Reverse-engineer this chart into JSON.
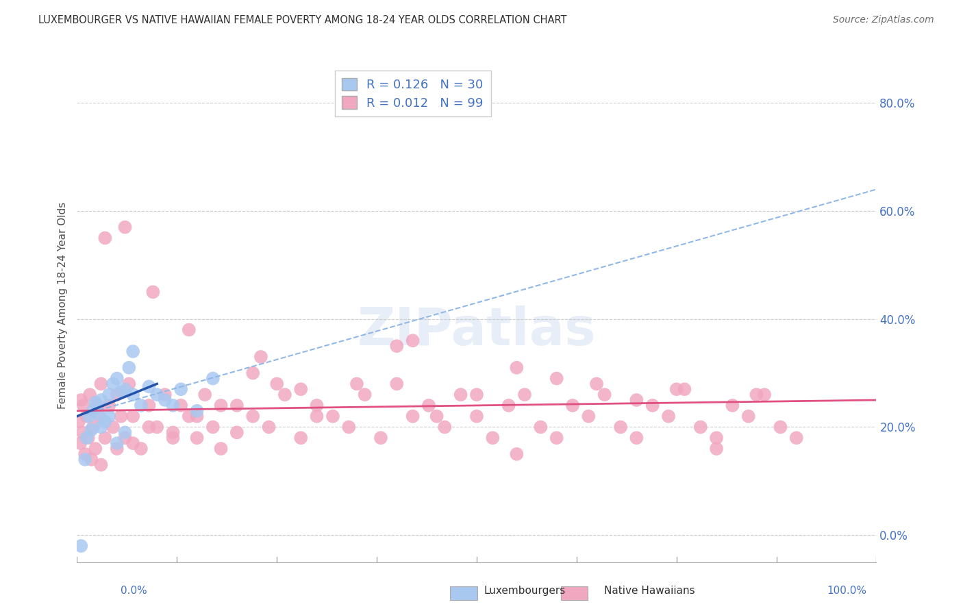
{
  "title": "LUXEMBOURGER VS NATIVE HAWAIIAN FEMALE POVERTY AMONG 18-24 YEAR OLDS CORRELATION CHART",
  "source": "Source: ZipAtlas.com",
  "ylabel": "Female Poverty Among 18-24 Year Olds",
  "xlim": [
    0,
    100
  ],
  "ylim": [
    -5,
    90
  ],
  "x_tick_labels_ends": [
    "0.0%",
    "100.0%"
  ],
  "y_ticks": [
    0,
    20,
    40,
    60,
    80
  ],
  "y_tick_labels": [
    "0.0%",
    "20.0%",
    "40.0%",
    "60.0%",
    "80.0%"
  ],
  "blue_R": 0.126,
  "blue_N": 30,
  "pink_R": 0.012,
  "pink_N": 99,
  "blue_color": "#A8C8F0",
  "pink_color": "#F0A8C0",
  "blue_line_color": "#2255AA",
  "pink_line_color": "#E05080",
  "dashed_line_color": "#90B8E8",
  "legend_blue_label": "Luxembourgers",
  "legend_pink_label": "Native Hawaiians",
  "background_color": "#FFFFFF",
  "watermark": "ZIPatlas",
  "blue_x": [
    0.5,
    1.0,
    1.2,
    1.5,
    1.8,
    2.0,
    2.3,
    2.5,
    3.0,
    3.5,
    4.0,
    4.5,
    5.0,
    5.5,
    6.0,
    6.5,
    7.0,
    8.0,
    9.0,
    10.0,
    11.0,
    12.0,
    13.0,
    15.0,
    17.0,
    3.0,
    4.0,
    5.0,
    6.0,
    7.0
  ],
  "blue_y": [
    -2.0,
    14.0,
    18.0,
    22.0,
    19.5,
    23.0,
    24.5,
    22.5,
    25.0,
    21.0,
    26.0,
    28.0,
    29.0,
    26.5,
    27.0,
    31.0,
    26.0,
    24.0,
    27.5,
    26.0,
    25.0,
    24.0,
    27.0,
    23.0,
    29.0,
    20.0,
    22.0,
    17.0,
    19.0,
    34.0
  ],
  "pink_x": [
    0.2,
    0.4,
    0.5,
    0.7,
    0.8,
    1.0,
    1.2,
    1.4,
    1.6,
    1.8,
    2.0,
    2.3,
    2.5,
    2.8,
    3.0,
    3.5,
    4.0,
    4.5,
    5.0,
    5.5,
    6.0,
    6.5,
    7.0,
    8.0,
    9.0,
    10.0,
    11.0,
    12.0,
    13.0,
    14.0,
    15.0,
    16.0,
    17.0,
    18.0,
    20.0,
    22.0,
    24.0,
    26.0,
    28.0,
    30.0,
    32.0,
    34.0,
    36.0,
    38.0,
    40.0,
    42.0,
    44.0,
    46.0,
    48.0,
    50.0,
    52.0,
    54.0,
    56.0,
    58.0,
    60.0,
    62.0,
    64.0,
    66.0,
    68.0,
    70.0,
    72.0,
    74.0,
    76.0,
    78.0,
    80.0,
    82.0,
    84.0,
    86.0,
    88.0,
    90.0,
    3.0,
    5.0,
    7.0,
    9.0,
    12.0,
    15.0,
    20.0,
    25.0,
    30.0,
    35.0,
    40.0,
    45.0,
    50.0,
    55.0,
    60.0,
    65.0,
    70.0,
    75.0,
    80.0,
    85.0,
    3.5,
    6.0,
    9.5,
    14.0,
    18.0,
    23.0,
    28.0,
    42.0,
    22.0,
    55.0
  ],
  "pink_y": [
    21.0,
    17.0,
    25.0,
    19.0,
    24.0,
    15.0,
    22.0,
    18.0,
    26.0,
    14.0,
    20.0,
    16.0,
    24.0,
    22.0,
    28.0,
    18.0,
    24.0,
    20.0,
    26.0,
    22.0,
    18.0,
    28.0,
    22.0,
    16.0,
    24.0,
    20.0,
    26.0,
    18.0,
    24.0,
    22.0,
    18.0,
    26.0,
    20.0,
    16.0,
    24.0,
    22.0,
    20.0,
    26.0,
    18.0,
    24.0,
    22.0,
    20.0,
    26.0,
    18.0,
    28.0,
    22.0,
    24.0,
    20.0,
    26.0,
    22.0,
    18.0,
    24.0,
    26.0,
    20.0,
    18.0,
    24.0,
    22.0,
    26.0,
    20.0,
    18.0,
    24.0,
    22.0,
    27.0,
    20.0,
    18.0,
    24.0,
    22.0,
    26.0,
    20.0,
    18.0,
    13.0,
    16.0,
    17.0,
    20.0,
    19.0,
    22.0,
    19.0,
    28.0,
    22.0,
    28.0,
    35.0,
    22.0,
    26.0,
    31.0,
    29.0,
    28.0,
    25.0,
    27.0,
    16.0,
    26.0,
    55.0,
    57.0,
    45.0,
    38.0,
    24.0,
    33.0,
    27.0,
    36.0,
    30.0,
    15.0
  ],
  "blue_solid_x0": 0,
  "blue_solid_x1": 10,
  "blue_solid_y0": 22,
  "blue_solid_y1": 28,
  "blue_dash_x0": 0,
  "blue_dash_x1": 100,
  "blue_dash_y0": 22,
  "blue_dash_y1": 64,
  "pink_solid_x0": 0,
  "pink_solid_x1": 100,
  "pink_solid_y0": 23,
  "pink_solid_y1": 25
}
